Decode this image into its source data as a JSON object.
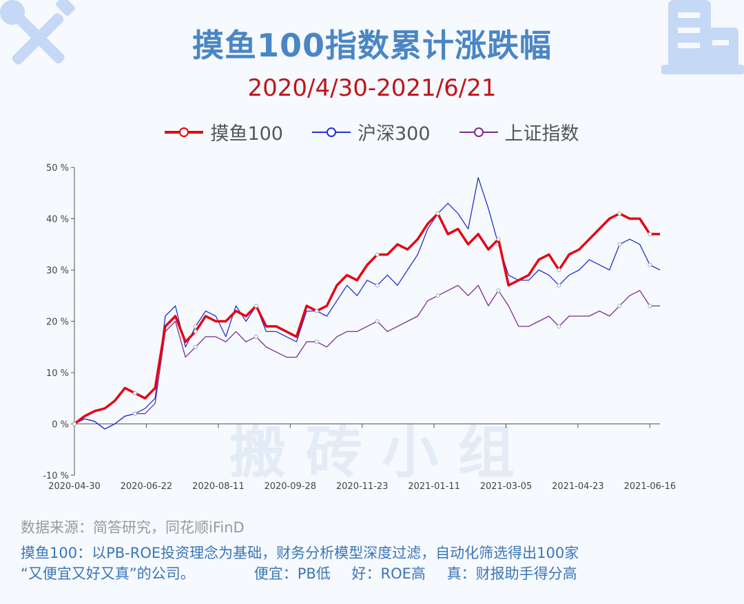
{
  "header": {
    "title": "摸鱼100指数累计涨跌幅",
    "subtitle": "2020/4/30-2021/6/21"
  },
  "watermark": "搬 砖 小 组",
  "footer": {
    "source": "数据来源：简答研究，同花顺iFinD",
    "desc_line1": "摸鱼100：以PB-ROE投资理念为基础，财务分析模型深度过滤，自动化筛选得出100家",
    "desc_line2a": "“又便宜又好又真”的公司。",
    "desc_cheap": "便宜：PB低",
    "desc_good": "好：ROE高",
    "desc_true": "真：财报助手得分高"
  },
  "colors": {
    "series1": "#e60012",
    "series2": "#1f2fd6",
    "series3": "#7b2a8e",
    "title": "#4a86c5",
    "subtitle": "#c0141a",
    "deco": "#c5d8f5"
  },
  "icons": {
    "left": "wrench-screwdriver-icon",
    "right": "building-icon"
  },
  "chart_data": {
    "type": "line",
    "title": "摸鱼100指数累计涨跌幅",
    "subtitle": "2020/4/30-2021/6/21",
    "y_unit": "%",
    "ylim": [
      -10,
      50
    ],
    "yticks": [
      -10,
      0,
      10,
      20,
      30,
      40,
      50
    ],
    "ytick_labels": [
      "-10 %",
      "0 %",
      "10 %",
      "20 %",
      "30 %",
      "40 %",
      "50 %"
    ],
    "xtick_labels": [
      "2020-04-30",
      "2020-06-22",
      "2020-08-11",
      "2020-09-28",
      "2020-11-23",
      "2021-01-11",
      "2021-03-05",
      "2021-04-23",
      "2021-06-16"
    ],
    "legend_position": "top-center",
    "grid": false,
    "x": [
      "2020-04-30",
      "2020-05-08",
      "2020-05-15",
      "2020-05-22",
      "2020-05-29",
      "2020-06-05",
      "2020-06-12",
      "2020-06-19",
      "2020-06-22",
      "2020-06-29",
      "2020-07-06",
      "2020-07-13",
      "2020-07-20",
      "2020-07-27",
      "2020-08-03",
      "2020-08-11",
      "2020-08-18",
      "2020-08-25",
      "2020-09-01",
      "2020-09-08",
      "2020-09-15",
      "2020-09-22",
      "2020-09-28",
      "2020-10-13",
      "2020-10-20",
      "2020-10-27",
      "2020-11-03",
      "2020-11-10",
      "2020-11-17",
      "2020-11-23",
      "2020-11-30",
      "2020-12-07",
      "2020-12-14",
      "2020-12-21",
      "2020-12-28",
      "2021-01-04",
      "2021-01-11",
      "2021-01-18",
      "2021-01-25",
      "2021-02-01",
      "2021-02-08",
      "2021-02-18",
      "2021-02-25",
      "2021-03-05",
      "2021-03-12",
      "2021-03-19",
      "2021-03-26",
      "2021-04-02",
      "2021-04-09",
      "2021-04-16",
      "2021-04-23",
      "2021-04-30",
      "2021-05-10",
      "2021-05-17",
      "2021-05-24",
      "2021-05-31",
      "2021-06-07",
      "2021-06-16",
      "2021-06-21"
    ],
    "series": [
      {
        "name": "摸鱼100",
        "values": [
          0,
          1.5,
          2.5,
          3,
          4.5,
          7,
          6,
          5,
          7,
          19,
          21,
          16,
          18,
          21,
          20,
          20,
          22,
          21,
          23,
          19,
          19,
          18,
          17,
          23,
          22,
          23,
          27,
          29,
          28,
          31,
          33,
          33,
          35,
          34,
          36,
          39,
          41,
          37,
          38,
          35,
          37,
          34,
          36,
          27,
          28,
          29,
          32,
          33,
          30,
          33,
          34,
          36,
          38,
          40,
          41,
          40,
          40,
          37,
          37
        ]
      },
      {
        "name": "沪深300",
        "values": [
          0,
          1,
          0.5,
          -1,
          0,
          1.5,
          2,
          3,
          5,
          21,
          23,
          15,
          19,
          22,
          21,
          17,
          23,
          20,
          23,
          18,
          18,
          17,
          16,
          22,
          22,
          21,
          24,
          27,
          25,
          28,
          27,
          29,
          27,
          30,
          33,
          38,
          41,
          43,
          41,
          38,
          48,
          42,
          35,
          29,
          28,
          28,
          30,
          29,
          27,
          29,
          30,
          32,
          31,
          30,
          35,
          36,
          35,
          31,
          30
        ]
      },
      {
        "name": "上证指数",
        "values": [
          0,
          1,
          0.5,
          -1,
          0,
          1.5,
          2,
          2,
          4,
          18,
          20,
          13,
          15,
          17,
          17,
          16,
          18,
          16,
          17,
          15,
          14,
          13,
          13,
          16,
          16,
          15,
          17,
          18,
          18,
          19,
          20,
          18,
          19,
          20,
          21,
          24,
          25,
          26,
          27,
          25,
          27,
          23,
          26,
          23,
          19,
          19,
          20,
          21,
          19,
          21,
          21,
          21,
          22,
          21,
          23,
          25,
          26,
          23,
          23
        ]
      }
    ]
  }
}
